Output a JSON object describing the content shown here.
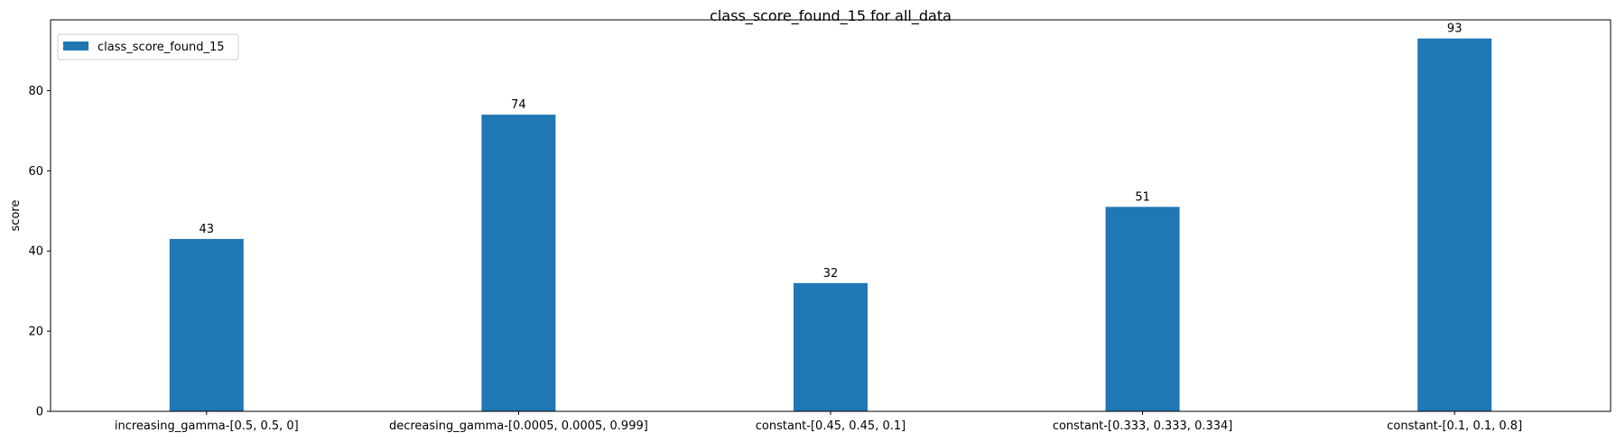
{
  "chart_data": {
    "type": "bar",
    "title": "class_score_found_15 for all_data",
    "xlabel": "",
    "ylabel": "score",
    "categories": [
      "increasing_gamma-[0.5, 0.5, 0]",
      "decreasing_gamma-[0.0005, 0.0005, 0.999]",
      "constant-[0.45, 0.45, 0.1]",
      "constant-[0.333, 0.333, 0.334]",
      "constant-[0.1, 0.1, 0.8]"
    ],
    "series": [
      {
        "name": "class_score_found_15",
        "values": [
          43,
          74,
          32,
          51,
          93
        ],
        "color": "#1f77b4"
      }
    ],
    "ylim": [
      0,
      97.65
    ],
    "yticks": [
      0,
      20,
      40,
      60,
      80
    ],
    "legend_position": "top-left",
    "grid": false,
    "data_labels": true
  }
}
